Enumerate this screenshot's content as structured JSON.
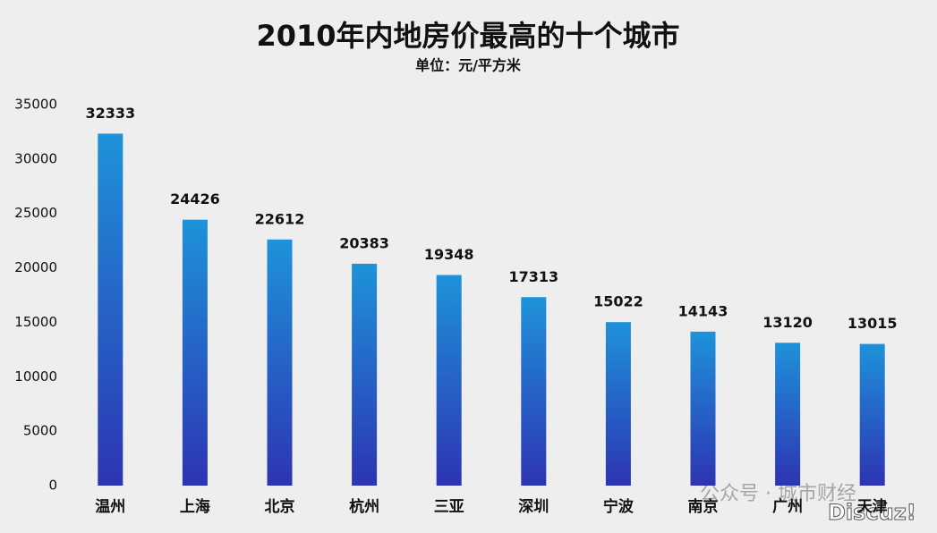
{
  "chart_data": {
    "type": "bar",
    "title": "2010年内地房价最高的十个城市",
    "subtitle": "单位：元/平方米",
    "categories": [
      "温州",
      "上海",
      "北京",
      "杭州",
      "三亚",
      "深圳",
      "宁波",
      "南京",
      "广州",
      "天津"
    ],
    "values": [
      32333,
      24426,
      22612,
      20383,
      19348,
      17313,
      15022,
      14143,
      13120,
      13015
    ],
    "color": [
      "#1e92da",
      "#2d34b2"
    ],
    "ylim": [
      0,
      35000
    ],
    "yticks": [
      0,
      5000,
      10000,
      15000,
      20000,
      25000,
      30000,
      35000
    ],
    "grid": false,
    "annotations": [
      "公众号 · 城市财经",
      "Discuz!"
    ]
  }
}
